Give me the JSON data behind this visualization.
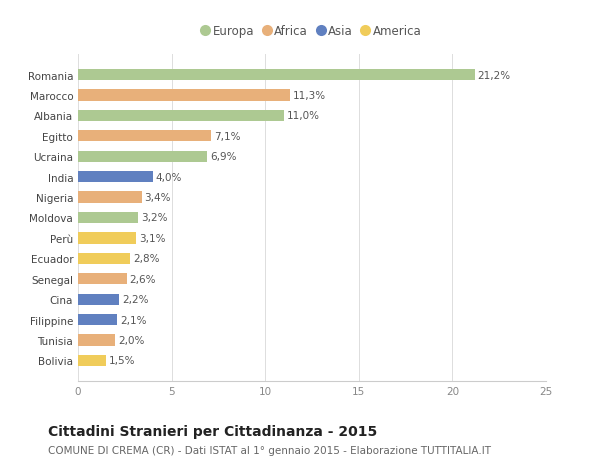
{
  "countries": [
    "Romania",
    "Marocco",
    "Albania",
    "Egitto",
    "Ucraina",
    "India",
    "Nigeria",
    "Moldova",
    "Perù",
    "Ecuador",
    "Senegal",
    "Cina",
    "Filippine",
    "Tunisia",
    "Bolivia"
  ],
  "values": [
    21.2,
    11.3,
    11.0,
    7.1,
    6.9,
    4.0,
    3.4,
    3.2,
    3.1,
    2.8,
    2.6,
    2.2,
    2.1,
    2.0,
    1.5
  ],
  "labels": [
    "21,2%",
    "11,3%",
    "11,0%",
    "7,1%",
    "6,9%",
    "4,0%",
    "3,4%",
    "3,2%",
    "3,1%",
    "2,8%",
    "2,6%",
    "2,2%",
    "2,1%",
    "2,0%",
    "1,5%"
  ],
  "continents": [
    "Europa",
    "Africa",
    "Europa",
    "Africa",
    "Europa",
    "Asia",
    "Africa",
    "Europa",
    "America",
    "America",
    "Africa",
    "Asia",
    "Asia",
    "Africa",
    "America"
  ],
  "colors": {
    "Europa": "#adc992",
    "Africa": "#e8b07a",
    "Asia": "#6080c0",
    "America": "#f0cc5a"
  },
  "xlim": [
    0,
    25
  ],
  "title": "Cittadini Stranieri per Cittadinanza - 2015",
  "subtitle": "COMUNE DI CREMA (CR) - Dati ISTAT al 1° gennaio 2015 - Elaborazione TUTTITALIA.IT",
  "bg_color": "#ffffff",
  "bar_bg_color": "#ffffff",
  "title_fontsize": 10,
  "subtitle_fontsize": 7.5,
  "label_fontsize": 7.5,
  "tick_fontsize": 7.5,
  "legend_fontsize": 8.5
}
